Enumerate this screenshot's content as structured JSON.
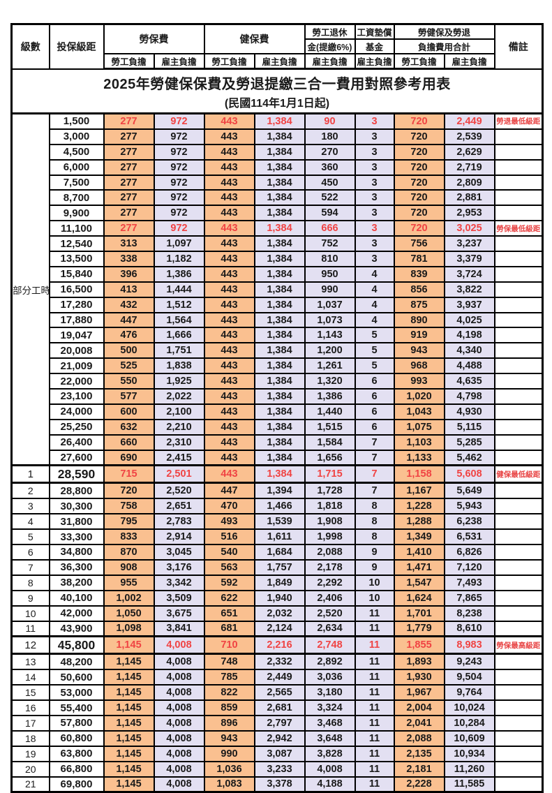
{
  "title": "2025年勞健保保費及勞退提繳三合一費用對照參考用表",
  "subtitle": "(民國114年1月1日起)",
  "colors": {
    "employee_col_bg": "#FAC090",
    "employer_col_bg": "#E3E0F2",
    "highlight_text": "#F04343",
    "border": "#000000"
  },
  "header": {
    "level": "級數",
    "bracket": "投保級距",
    "labor_insurance": "勞保費",
    "health_insurance": "健保費",
    "pension_line1": "勞工退休",
    "pension_line2": "金(提繳6%)",
    "wage_fund_line1": "工資墊償",
    "wage_fund_line2": "基金",
    "total_line1": "勞健保及勞退",
    "total_line2": "負擔費用合計",
    "employee": "勞工負擔",
    "employer": "雇主負擔",
    "remarks": "備註"
  },
  "part_time_label": "部分工時",
  "rows": [
    {
      "level": "",
      "bracket": "1,500",
      "values": [
        "277",
        "972",
        "443",
        "1,384",
        "90",
        "3",
        "720",
        "2,449"
      ],
      "note": "勞退最低級距",
      "red": true,
      "em": false
    },
    {
      "level": "",
      "bracket": "3,000",
      "values": [
        "277",
        "972",
        "443",
        "1,384",
        "180",
        "3",
        "720",
        "2,539"
      ],
      "note": "",
      "red": false,
      "em": false
    },
    {
      "level": "",
      "bracket": "4,500",
      "values": [
        "277",
        "972",
        "443",
        "1,384",
        "270",
        "3",
        "720",
        "2,629"
      ],
      "note": "",
      "red": false,
      "em": false
    },
    {
      "level": "",
      "bracket": "6,000",
      "values": [
        "277",
        "972",
        "443",
        "1,384",
        "360",
        "3",
        "720",
        "2,719"
      ],
      "note": "",
      "red": false,
      "em": false
    },
    {
      "level": "",
      "bracket": "7,500",
      "values": [
        "277",
        "972",
        "443",
        "1,384",
        "450",
        "3",
        "720",
        "2,809"
      ],
      "note": "",
      "red": false,
      "em": false
    },
    {
      "level": "",
      "bracket": "8,700",
      "values": [
        "277",
        "972",
        "443",
        "1,384",
        "522",
        "3",
        "720",
        "2,881"
      ],
      "note": "",
      "red": false,
      "em": false
    },
    {
      "level": "",
      "bracket": "9,900",
      "values": [
        "277",
        "972",
        "443",
        "1,384",
        "594",
        "3",
        "720",
        "2,953"
      ],
      "note": "",
      "red": false,
      "em": false
    },
    {
      "level": "",
      "bracket": "11,100",
      "values": [
        "277",
        "972",
        "443",
        "1,384",
        "666",
        "3",
        "720",
        "3,025"
      ],
      "note": "勞保最低級距",
      "red": true,
      "em": false
    },
    {
      "level": "",
      "bracket": "12,540",
      "values": [
        "313",
        "1,097",
        "443",
        "1,384",
        "752",
        "3",
        "756",
        "3,237"
      ],
      "note": "",
      "red": false,
      "em": false
    },
    {
      "level": "",
      "bracket": "13,500",
      "values": [
        "338",
        "1,182",
        "443",
        "1,384",
        "810",
        "3",
        "781",
        "3,379"
      ],
      "note": "",
      "red": false,
      "em": false
    },
    {
      "level": "",
      "bracket": "15,840",
      "values": [
        "396",
        "1,386",
        "443",
        "1,384",
        "950",
        "4",
        "839",
        "3,724"
      ],
      "note": "",
      "red": false,
      "em": false
    },
    {
      "level": "",
      "bracket": "16,500",
      "values": [
        "413",
        "1,444",
        "443",
        "1,384",
        "990",
        "4",
        "856",
        "3,822"
      ],
      "note": "",
      "red": false,
      "em": false
    },
    {
      "level": "",
      "bracket": "17,280",
      "values": [
        "432",
        "1,512",
        "443",
        "1,384",
        "1,037",
        "4",
        "875",
        "3,937"
      ],
      "note": "",
      "red": false,
      "em": false
    },
    {
      "level": "",
      "bracket": "17,880",
      "values": [
        "447",
        "1,564",
        "443",
        "1,384",
        "1,073",
        "4",
        "890",
        "4,025"
      ],
      "note": "",
      "red": false,
      "em": false
    },
    {
      "level": "",
      "bracket": "19,047",
      "values": [
        "476",
        "1,666",
        "443",
        "1,384",
        "1,143",
        "5",
        "919",
        "4,198"
      ],
      "note": "",
      "red": false,
      "em": false
    },
    {
      "level": "",
      "bracket": "20,008",
      "values": [
        "500",
        "1,751",
        "443",
        "1,384",
        "1,200",
        "5",
        "943",
        "4,340"
      ],
      "note": "",
      "red": false,
      "em": false
    },
    {
      "level": "",
      "bracket": "21,009",
      "values": [
        "525",
        "1,838",
        "443",
        "1,384",
        "1,261",
        "5",
        "968",
        "4,488"
      ],
      "note": "",
      "red": false,
      "em": false
    },
    {
      "level": "",
      "bracket": "22,000",
      "values": [
        "550",
        "1,925",
        "443",
        "1,384",
        "1,320",
        "6",
        "993",
        "4,635"
      ],
      "note": "",
      "red": false,
      "em": false
    },
    {
      "level": "",
      "bracket": "23,100",
      "values": [
        "577",
        "2,022",
        "443",
        "1,384",
        "1,386",
        "6",
        "1,020",
        "4,798"
      ],
      "note": "",
      "red": false,
      "em": false
    },
    {
      "level": "",
      "bracket": "24,000",
      "values": [
        "600",
        "2,100",
        "443",
        "1,384",
        "1,440",
        "6",
        "1,043",
        "4,930"
      ],
      "note": "",
      "red": false,
      "em": false
    },
    {
      "level": "",
      "bracket": "25,250",
      "values": [
        "632",
        "2,210",
        "443",
        "1,384",
        "1,515",
        "6",
        "1,075",
        "5,115"
      ],
      "note": "",
      "red": false,
      "em": false
    },
    {
      "level": "",
      "bracket": "26,400",
      "values": [
        "660",
        "2,310",
        "443",
        "1,384",
        "1,584",
        "7",
        "1,103",
        "5,285"
      ],
      "note": "",
      "red": false,
      "em": false
    },
    {
      "level": "",
      "bracket": "27,600",
      "values": [
        "690",
        "2,415",
        "443",
        "1,384",
        "1,656",
        "7",
        "1,133",
        "5,462"
      ],
      "note": "",
      "red": false,
      "em": false
    },
    {
      "level": "1",
      "bracket": "28,590",
      "values": [
        "715",
        "2,501",
        "443",
        "1,384",
        "1,715",
        "7",
        "1,158",
        "5,608"
      ],
      "note": "健保最低級距",
      "red": true,
      "em": true
    },
    {
      "level": "2",
      "bracket": "28,800",
      "values": [
        "720",
        "2,520",
        "447",
        "1,394",
        "1,728",
        "7",
        "1,167",
        "5,649"
      ],
      "note": "",
      "red": false,
      "em": false
    },
    {
      "level": "3",
      "bracket": "30,300",
      "values": [
        "758",
        "2,651",
        "470",
        "1,466",
        "1,818",
        "8",
        "1,228",
        "5,943"
      ],
      "note": "",
      "red": false,
      "em": false
    },
    {
      "level": "4",
      "bracket": "31,800",
      "values": [
        "795",
        "2,783",
        "493",
        "1,539",
        "1,908",
        "8",
        "1,288",
        "6,238"
      ],
      "note": "",
      "red": false,
      "em": false
    },
    {
      "level": "5",
      "bracket": "33,300",
      "values": [
        "833",
        "2,914",
        "516",
        "1,611",
        "1,998",
        "8",
        "1,349",
        "6,531"
      ],
      "note": "",
      "red": false,
      "em": false
    },
    {
      "level": "6",
      "bracket": "34,800",
      "values": [
        "870",
        "3,045",
        "540",
        "1,684",
        "2,088",
        "9",
        "1,410",
        "6,826"
      ],
      "note": "",
      "red": false,
      "em": false
    },
    {
      "level": "7",
      "bracket": "36,300",
      "values": [
        "908",
        "3,176",
        "563",
        "1,757",
        "2,178",
        "9",
        "1,471",
        "7,120"
      ],
      "note": "",
      "red": false,
      "em": false
    },
    {
      "level": "8",
      "bracket": "38,200",
      "values": [
        "955",
        "3,342",
        "592",
        "1,849",
        "2,292",
        "10",
        "1,547",
        "7,493"
      ],
      "note": "",
      "red": false,
      "em": false
    },
    {
      "level": "9",
      "bracket": "40,100",
      "values": [
        "1,002",
        "3,509",
        "622",
        "1,940",
        "2,406",
        "10",
        "1,624",
        "7,865"
      ],
      "note": "",
      "red": false,
      "em": false
    },
    {
      "level": "10",
      "bracket": "42,000",
      "values": [
        "1,050",
        "3,675",
        "651",
        "2,032",
        "2,520",
        "11",
        "1,701",
        "8,238"
      ],
      "note": "",
      "red": false,
      "em": false
    },
    {
      "level": "11",
      "bracket": "43,900",
      "values": [
        "1,098",
        "3,841",
        "681",
        "2,124",
        "2,634",
        "11",
        "1,779",
        "8,610"
      ],
      "note": "",
      "red": false,
      "em": false
    },
    {
      "level": "12",
      "bracket": "45,800",
      "values": [
        "1,145",
        "4,008",
        "710",
        "2,216",
        "2,748",
        "11",
        "1,855",
        "8,983"
      ],
      "note": "勞保最高級距",
      "red": true,
      "em": true
    },
    {
      "level": "13",
      "bracket": "48,200",
      "values": [
        "1,145",
        "4,008",
        "748",
        "2,332",
        "2,892",
        "11",
        "1,893",
        "9,243"
      ],
      "note": "",
      "red": false,
      "em": false
    },
    {
      "level": "14",
      "bracket": "50,600",
      "values": [
        "1,145",
        "4,008",
        "785",
        "2,449",
        "3,036",
        "11",
        "1,930",
        "9,504"
      ],
      "note": "",
      "red": false,
      "em": false
    },
    {
      "level": "15",
      "bracket": "53,000",
      "values": [
        "1,145",
        "4,008",
        "822",
        "2,565",
        "3,180",
        "11",
        "1,967",
        "9,764"
      ],
      "note": "",
      "red": false,
      "em": false
    },
    {
      "level": "16",
      "bracket": "55,400",
      "values": [
        "1,145",
        "4,008",
        "859",
        "2,681",
        "3,324",
        "11",
        "2,004",
        "10,024"
      ],
      "note": "",
      "red": false,
      "em": false
    },
    {
      "level": "17",
      "bracket": "57,800",
      "values": [
        "1,145",
        "4,008",
        "896",
        "2,797",
        "3,468",
        "11",
        "2,041",
        "10,284"
      ],
      "note": "",
      "red": false,
      "em": false
    },
    {
      "level": "18",
      "bracket": "60,800",
      "values": [
        "1,145",
        "4,008",
        "943",
        "2,942",
        "3,648",
        "11",
        "2,088",
        "10,609"
      ],
      "note": "",
      "red": false,
      "em": false
    },
    {
      "level": "19",
      "bracket": "63,800",
      "values": [
        "1,145",
        "4,008",
        "990",
        "3,087",
        "3,828",
        "11",
        "2,135",
        "10,934"
      ],
      "note": "",
      "red": false,
      "em": false
    },
    {
      "level": "20",
      "bracket": "66,800",
      "values": [
        "1,145",
        "4,008",
        "1,036",
        "3,233",
        "4,008",
        "11",
        "2,181",
        "11,260"
      ],
      "note": "",
      "red": false,
      "em": false
    },
    {
      "level": "21",
      "bracket": "69,800",
      "values": [
        "1,145",
        "4,008",
        "1,083",
        "3,378",
        "4,188",
        "11",
        "2,228",
        "11,585"
      ],
      "note": "",
      "red": false,
      "em": false
    }
  ]
}
